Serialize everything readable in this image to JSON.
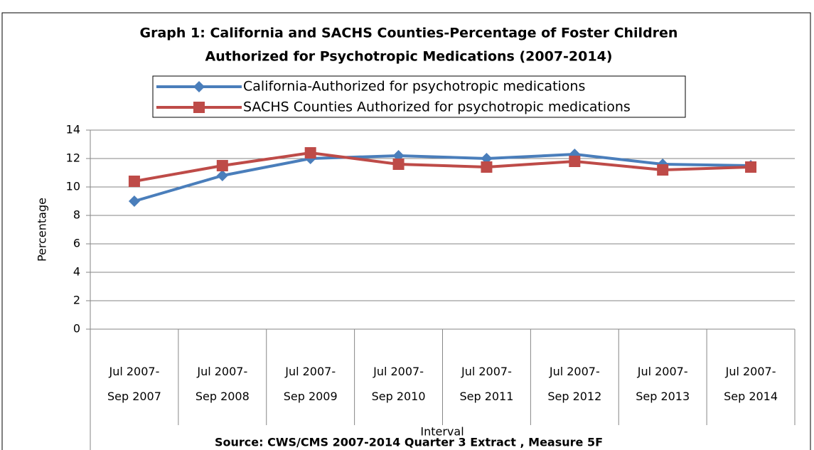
{
  "chart_data": {
    "type": "line",
    "title": "Graph 1: California and SACHS Counties-Percentage of Foster Children Authorized for Psychotropic Medications  (2007-2014)",
    "x_label": "Interval",
    "y_label": "Percentage",
    "source": "Source: CWS/CMS 2007-2014 Quarter 3 Extract , Measure 5F",
    "categories": [
      "Jul 2007- Sep 2007",
      "Jul 2007- Sep 2008",
      "Jul 2007- Sep 2009",
      "Jul 2007- Sep 2010",
      "Jul 2007- Sep 2011",
      "Jul 2007- Sep 2012",
      "Jul 2007- Sep 2013",
      "Jul 2007- Sep 2014"
    ],
    "series": [
      {
        "name": "California-Authorized for psychotropic medications",
        "color": "#4a7ebb",
        "marker": "diamond",
        "values": [
          9,
          10.8,
          12,
          12.2,
          12,
          12.3,
          11.6,
          11.5
        ]
      },
      {
        "name": "SACHS Counties Authorized for psychotropic medications",
        "color": "#be4b48",
        "marker": "square",
        "values": [
          10.4,
          11.5,
          12.4,
          11.6,
          11.4,
          11.8,
          11.2,
          11.4
        ]
      }
    ],
    "ylim": [
      0,
      14
    ],
    "yticks": [
      0,
      2,
      4,
      6,
      8,
      10,
      12,
      14
    ],
    "grid": true,
    "legend": "top"
  }
}
